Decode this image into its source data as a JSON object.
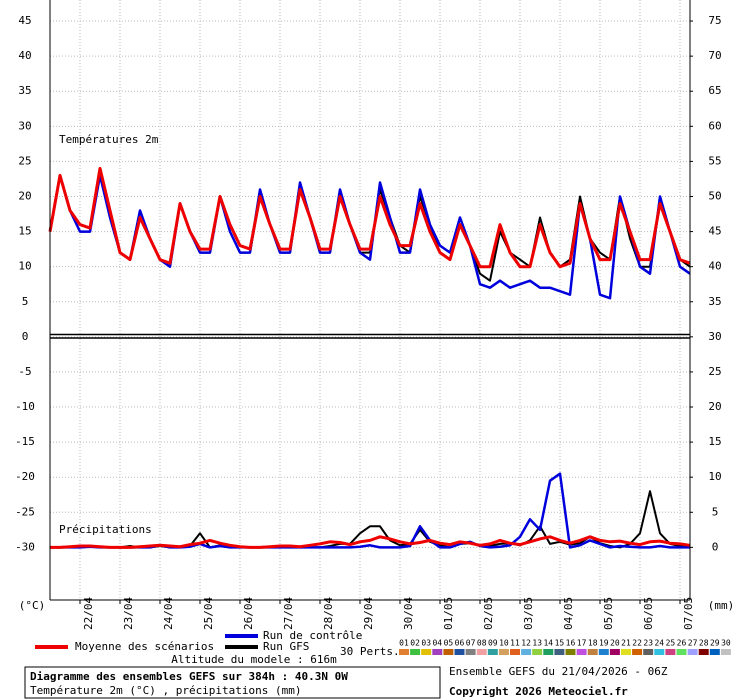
{
  "chart_data": {
    "type": "line",
    "temp_title": "Températures 2m",
    "precip_title": "Précipitations",
    "ylabel": "(°C)",
    "y2label": "(mm)",
    "altitude": "Altitude du modele : 616m",
    "perts_title": "30 Perts.",
    "footer_title": "Diagramme des ensembles GEFS sur 384h : 40.3N 0W",
    "footer_subtitle": "Température 2m (°C) , précipitations (mm)",
    "run_info": "Ensemble GEFS du 21/04/2026 - 06Z",
    "copyright": "Copyright 2026 Meteociel.fr",
    "grid": true,
    "xlim": [
      0,
      384
    ],
    "xticks": [
      {
        "value": 18,
        "label": "22/04"
      },
      {
        "value": 42,
        "label": "23/04"
      },
      {
        "value": 66,
        "label": "24/04"
      },
      {
        "value": 90,
        "label": "25/04"
      },
      {
        "value": 114,
        "label": "26/04"
      },
      {
        "value": 138,
        "label": "27/04"
      },
      {
        "value": 162,
        "label": "28/04"
      },
      {
        "value": 186,
        "label": "29/04"
      },
      {
        "value": 210,
        "label": "30/04"
      },
      {
        "value": 234,
        "label": "01/05"
      },
      {
        "value": 258,
        "label": "02/05"
      },
      {
        "value": 282,
        "label": "03/05"
      },
      {
        "value": 306,
        "label": "04/05"
      },
      {
        "value": 330,
        "label": "05/05"
      },
      {
        "value": 354,
        "label": "06/05"
      },
      {
        "value": 378,
        "label": "07/05"
      }
    ],
    "ylim": [
      -37.5,
      48
    ],
    "yticks": [
      45,
      40,
      35,
      30,
      25,
      20,
      15,
      10,
      5,
      0,
      -5,
      -10,
      -15,
      -20,
      -25,
      -30
    ],
    "y2lim": [
      -7.5,
      78
    ],
    "y2ticks": [
      75,
      70,
      65,
      60,
      55,
      50,
      45,
      40,
      35,
      30,
      25,
      20,
      15,
      10,
      5,
      0
    ],
    "x": [
      0,
      6,
      12,
      18,
      24,
      30,
      36,
      42,
      48,
      54,
      60,
      66,
      72,
      78,
      84,
      90,
      96,
      102,
      108,
      114,
      120,
      126,
      132,
      138,
      144,
      150,
      156,
      162,
      168,
      174,
      180,
      186,
      192,
      198,
      204,
      210,
      216,
      222,
      228,
      234,
      240,
      246,
      252,
      258,
      264,
      270,
      276,
      282,
      288,
      294,
      300,
      306,
      312,
      318,
      324,
      330,
      336,
      342,
      348,
      354,
      360,
      366,
      372,
      378,
      384
    ],
    "series": [
      {
        "name": "Moyenne des scénarios",
        "color": "#ee0000",
        "width": 3,
        "values": [
          15,
          23,
          18,
          16,
          15.5,
          24,
          18,
          12,
          11,
          17,
          14,
          11,
          10.5,
          19,
          15,
          12.5,
          12.5,
          20,
          16,
          13,
          12.5,
          20,
          16,
          12.5,
          12.5,
          21,
          17,
          12.5,
          12.5,
          20,
          16,
          12.5,
          12.5,
          20,
          16,
          13,
          13,
          19,
          15,
          12,
          11,
          16,
          13,
          10,
          10,
          16,
          12,
          10,
          10,
          16,
          12,
          10,
          10.5,
          19,
          14,
          11,
          11,
          19,
          15,
          11,
          11,
          19,
          15,
          11,
          10.5
        ],
        "y2_values": [
          0,
          0,
          0.1,
          0.2,
          0.2,
          0.1,
          0,
          0,
          0,
          0.1,
          0.2,
          0.3,
          0.2,
          0.1,
          0.4,
          0.6,
          1,
          0.6,
          0.3,
          0.1,
          0,
          0,
          0.1,
          0.2,
          0.2,
          0.1,
          0.3,
          0.5,
          0.8,
          0.7,
          0.4,
          0.8,
          1,
          1.5,
          1.2,
          0.8,
          0.5,
          0.7,
          1,
          0.6,
          0.4,
          0.8,
          0.6,
          0.3,
          0.5,
          1,
          0.6,
          0.4,
          0.8,
          1.2,
          1.5,
          1,
          0.6,
          1,
          1.5,
          1,
          0.8,
          0.9,
          0.6,
          0.4,
          0.8,
          0.9,
          0.6,
          0.5,
          0.3
        ]
      },
      {
        "name": "Run de contrôle",
        "color": "#0000dd",
        "width": 2.5,
        "values": [
          15,
          23,
          18,
          15,
          15,
          23,
          17,
          12,
          11,
          18,
          14,
          11,
          10,
          19,
          15,
          12,
          12,
          20,
          15,
          12,
          12,
          21,
          16,
          12,
          12,
          22,
          17,
          12,
          12,
          21,
          16,
          12,
          11,
          22,
          17,
          12,
          12,
          21,
          16,
          13,
          12,
          17,
          13,
          7.5,
          7,
          8,
          7,
          7.5,
          8,
          7,
          7,
          6.5,
          6,
          19,
          14,
          6,
          5.5,
          20,
          15,
          10,
          9,
          20,
          15,
          10,
          9
        ],
        "y2_values": [
          0,
          0,
          0,
          0,
          0.1,
          0,
          0,
          0,
          0,
          0,
          0,
          0.3,
          0,
          0,
          0.1,
          0.5,
          0,
          0.2,
          0,
          0,
          0,
          0,
          0,
          0,
          0,
          0,
          0,
          0,
          0,
          0,
          0,
          0.1,
          0.3,
          0,
          0,
          0,
          0.2,
          3,
          1,
          0,
          0,
          0.5,
          0.8,
          0.2,
          0,
          0.1,
          0.3,
          1.5,
          4,
          2.5,
          9.5,
          10.5,
          0,
          0.3,
          1,
          0.5,
          0,
          0.2,
          0.1,
          0,
          0,
          0.2,
          0,
          0,
          0
        ]
      },
      {
        "name": "Run GFS",
        "color": "#000000",
        "width": 2,
        "values": [
          15,
          23,
          18,
          15,
          15,
          24,
          18,
          12,
          11,
          18,
          14,
          11,
          10,
          19,
          15,
          12,
          12,
          20,
          15,
          12,
          12,
          20,
          16,
          12,
          12,
          21,
          17,
          12,
          12,
          21,
          16,
          12,
          12,
          21,
          17,
          13,
          12,
          20,
          16,
          12,
          11,
          17,
          13,
          9,
          8,
          15,
          12,
          11,
          10,
          17,
          12,
          10,
          11,
          20,
          14,
          12,
          11,
          20,
          14,
          10,
          10,
          19,
          15,
          11,
          10
        ],
        "y2_values": [
          0,
          0,
          0,
          0,
          0.1,
          0,
          0,
          0,
          0.2,
          0,
          0,
          0.2,
          0,
          0,
          0.2,
          2,
          0,
          0.3,
          0,
          0,
          0,
          0,
          0,
          0,
          0,
          0,
          0,
          0,
          0.2,
          0.5,
          0.5,
          2,
          3,
          3,
          1,
          0.3,
          0.5,
          2.5,
          0.8,
          0.3,
          0,
          0.5,
          0.6,
          0.3,
          0.2,
          0.5,
          0.6,
          0.3,
          1,
          3,
          0.5,
          0.8,
          0.4,
          0.6,
          1.5,
          0.6,
          0.2,
          0,
          0.5,
          2,
          8,
          2,
          0.5,
          0.2,
          0
        ]
      }
    ],
    "perturbations": [
      {
        "name": "01",
        "color": "#e08030"
      },
      {
        "name": "02",
        "color": "#40c040"
      },
      {
        "name": "03",
        "color": "#e0c000"
      },
      {
        "name": "04",
        "color": "#a040c0"
      },
      {
        "name": "05",
        "color": "#c06000"
      },
      {
        "name": "06",
        "color": "#2050a0"
      },
      {
        "name": "07",
        "color": "#808080"
      },
      {
        "name": "08",
        "color": "#f0a0a0"
      },
      {
        "name": "09",
        "color": "#30a0a0"
      },
      {
        "name": "10",
        "color": "#d4a060"
      },
      {
        "name": "11",
        "color": "#e06020"
      },
      {
        "name": "12",
        "color": "#60b0e0"
      },
      {
        "name": "13",
        "color": "#90d040"
      },
      {
        "name": "14",
        "color": "#20a060"
      },
      {
        "name": "15",
        "color": "#406080"
      },
      {
        "name": "16",
        "color": "#808000"
      },
      {
        "name": "17",
        "color": "#c050e0"
      },
      {
        "name": "18",
        "color": "#c08040"
      },
      {
        "name": "19",
        "color": "#2080d0"
      },
      {
        "name": "20",
        "color": "#a00060"
      },
      {
        "name": "21",
        "color": "#e0e020"
      },
      {
        "name": "22",
        "color": "#d06000"
      },
      {
        "name": "23",
        "color": "#606060"
      },
      {
        "name": "24",
        "color": "#30c0e0"
      },
      {
        "name": "25",
        "color": "#d04080"
      },
      {
        "name": "26",
        "color": "#60e060"
      },
      {
        "name": "27",
        "color": "#a0a0ff"
      },
      {
        "name": "28",
        "color": "#800000"
      },
      {
        "name": "29",
        "color": "#0060c0"
      },
      {
        "name": "30",
        "color": "#c0c0c0"
      }
    ]
  }
}
